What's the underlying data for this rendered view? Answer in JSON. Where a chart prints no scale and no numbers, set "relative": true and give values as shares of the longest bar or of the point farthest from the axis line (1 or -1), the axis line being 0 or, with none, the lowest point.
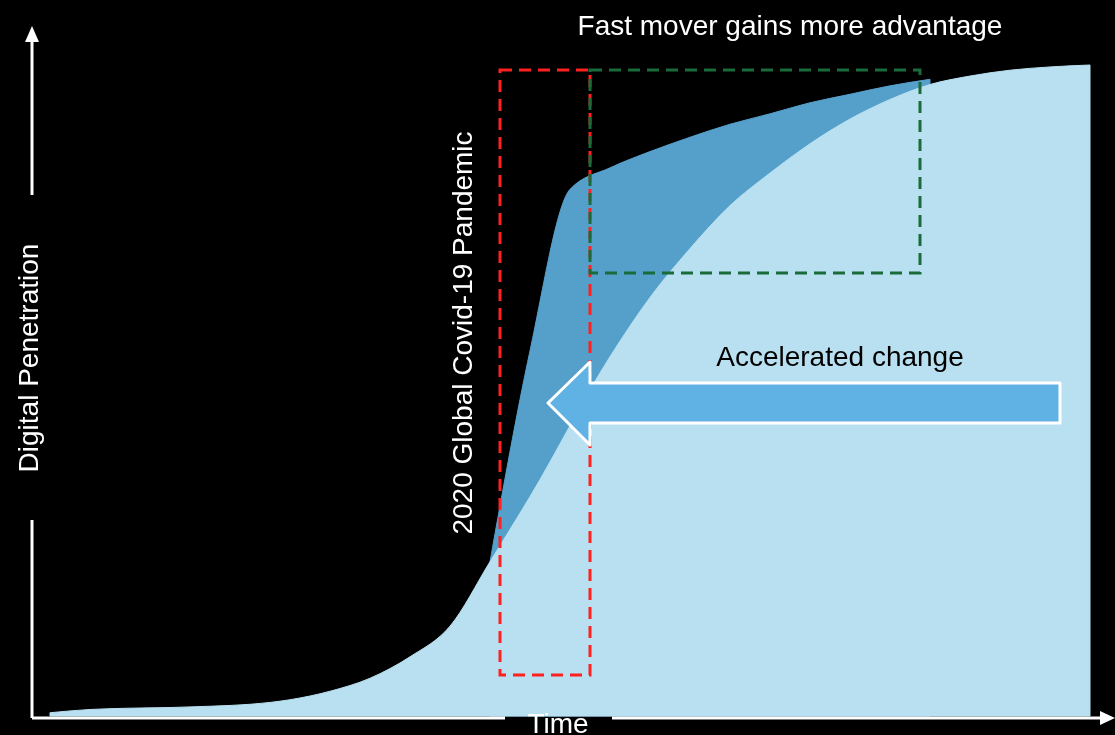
{
  "chart_data": {
    "type": "area",
    "relative": true,
    "xlabel": "Time",
    "ylabel": "Digital Penetration",
    "categories": [
      null,
      null,
      null,
      null,
      null,
      null,
      null,
      null,
      null,
      null,
      null,
      null,
      null,
      null,
      null,
      null,
      null,
      null,
      null,
      null,
      null,
      null,
      null,
      null,
      null,
      null,
      null
    ],
    "series": [
      {
        "color": "#b8e0f0",
        "values": [
          0.005,
          0.01,
          0.012,
          0.013,
          0.015,
          0.018,
          0.025,
          0.038,
          0.058,
          0.091,
          0.138,
          0.237,
          0.337,
          null,
          0.552,
          0.643,
          0.718,
          0.784,
          0.834,
          0.879,
          0.917,
          0.947,
          0.97,
          0.983,
          0.992,
          0.997,
          1.0
        ]
      },
      {
        "color": "#559fcb",
        "values": [
          null,
          null,
          null,
          null,
          null,
          null,
          null,
          null,
          null,
          null,
          null,
          0.237,
          0.561,
          0.809,
          0.842,
          0.867,
          0.889,
          0.909,
          0.925,
          0.942,
          0.955,
          0.968,
          0.978,
          null,
          null,
          null,
          null
        ]
      }
    ],
    "annotations": [
      "Fast mover gains more advantage",
      "2020 Global Covid-19 Pandemic",
      "Accelerated change"
    ]
  }
}
